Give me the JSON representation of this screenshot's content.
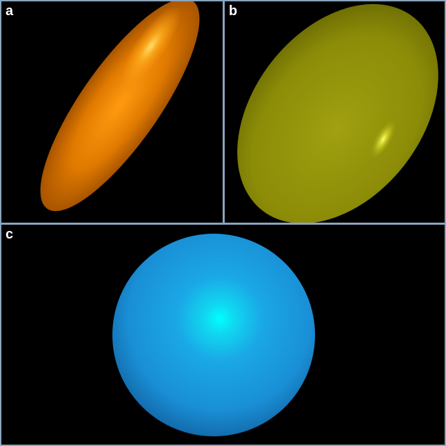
{
  "panels": [
    {
      "id": "a",
      "label": "a",
      "shape": "prolate-ellipsoid",
      "color": "#e07a00",
      "highlight": "#ffe070"
    },
    {
      "id": "b",
      "label": "b",
      "shape": "oblate-ellipsoid",
      "color": "#9a9a0a",
      "highlight": "#ffff80"
    },
    {
      "id": "c",
      "label": "c",
      "shape": "sphere",
      "color": "#1a8fd6",
      "highlight": "#00ffff"
    }
  ],
  "colors": {
    "background": "#000000",
    "divider": "#8aa6bf"
  }
}
